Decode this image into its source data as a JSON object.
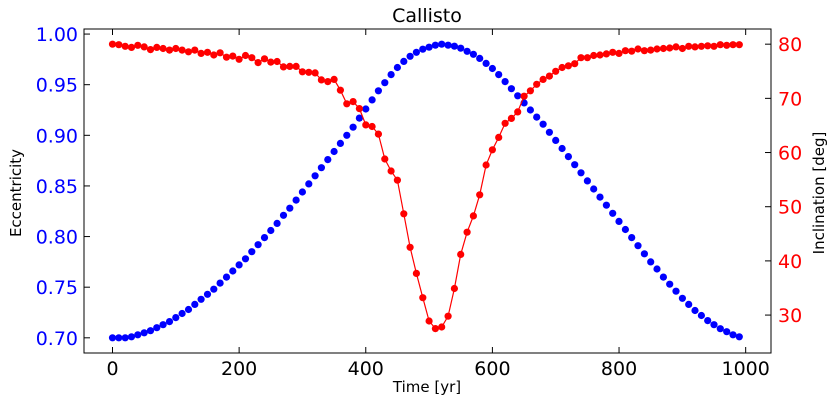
{
  "chart_data": {
    "type": "line",
    "title": "Callisto",
    "xlabel": "Time [yr]",
    "xlim": [
      -45,
      1040
    ],
    "x_ticks": [
      0,
      200,
      400,
      600,
      800,
      1000
    ],
    "y_left": {
      "label": "Eccentricity",
      "lim": [
        0.685,
        1.005
      ],
      "ticks": [
        0.7,
        0.75,
        0.8,
        0.85,
        0.9,
        0.95,
        1.0
      ],
      "color": "#0000ff"
    },
    "y_right": {
      "label": "Inclination [deg]",
      "lim": [
        23.0,
        82.8
      ],
      "ticks": [
        30,
        40,
        50,
        60,
        70,
        80
      ],
      "color": "#ff0000"
    },
    "x_step": 10,
    "grid": false,
    "legend": "none",
    "series": [
      {
        "axis": "left",
        "color": "#0000ff",
        "line": false,
        "marker": "circle",
        "x": [
          0,
          10,
          20,
          30,
          40,
          50,
          60,
          70,
          80,
          90,
          100,
          110,
          120,
          130,
          140,
          150,
          160,
          170,
          180,
          190,
          200,
          210,
          220,
          230,
          240,
          250,
          260,
          270,
          280,
          290,
          300,
          310,
          320,
          330,
          340,
          350,
          360,
          370,
          380,
          390,
          400,
          410,
          420,
          430,
          440,
          450,
          460,
          470,
          480,
          490,
          500,
          510,
          520,
          530,
          540,
          550,
          560,
          570,
          580,
          590,
          600,
          610,
          620,
          630,
          640,
          650,
          660,
          670,
          680,
          690,
          700,
          710,
          720,
          730,
          740,
          750,
          760,
          770,
          780,
          790,
          800,
          810,
          820,
          830,
          840,
          850,
          860,
          870,
          880,
          890,
          900,
          910,
          920,
          930,
          940,
          950,
          960,
          970,
          980,
          990
        ],
        "y": [
          0.7,
          0.7,
          0.7,
          0.701,
          0.703,
          0.705,
          0.707,
          0.71,
          0.713,
          0.716,
          0.72,
          0.724,
          0.728,
          0.733,
          0.738,
          0.743,
          0.748,
          0.754,
          0.76,
          0.766,
          0.772,
          0.778,
          0.785,
          0.792,
          0.799,
          0.806,
          0.813,
          0.821,
          0.828,
          0.836,
          0.844,
          0.852,
          0.86,
          0.868,
          0.876,
          0.884,
          0.892,
          0.9,
          0.908,
          0.917,
          0.926,
          0.935,
          0.944,
          0.952,
          0.96,
          0.967,
          0.973,
          0.978,
          0.982,
          0.985,
          0.987,
          0.989,
          0.99,
          0.989,
          0.988,
          0.986,
          0.983,
          0.98,
          0.976,
          0.971,
          0.966,
          0.96,
          0.953,
          0.946,
          0.939,
          0.932,
          0.925,
          0.918,
          0.911,
          0.903,
          0.895,
          0.887,
          0.879,
          0.871,
          0.863,
          0.855,
          0.847,
          0.839,
          0.831,
          0.823,
          0.815,
          0.807,
          0.799,
          0.791,
          0.783,
          0.775,
          0.768,
          0.76,
          0.753,
          0.746,
          0.739,
          0.733,
          0.727,
          0.722,
          0.717,
          0.713,
          0.709,
          0.706,
          0.703,
          0.701
        ]
      },
      {
        "axis": "right",
        "color": "#ff0000",
        "line": true,
        "marker": "circle",
        "x": [
          0,
          10,
          20,
          30,
          40,
          50,
          60,
          70,
          80,
          90,
          100,
          110,
          120,
          130,
          140,
          150,
          160,
          170,
          180,
          190,
          200,
          210,
          220,
          230,
          240,
          250,
          260,
          270,
          280,
          290,
          300,
          310,
          320,
          330,
          340,
          350,
          360,
          370,
          380,
          390,
          400,
          410,
          420,
          430,
          440,
          450,
          460,
          470,
          480,
          490,
          500,
          510,
          520,
          530,
          540,
          550,
          560,
          570,
          580,
          590,
          600,
          610,
          620,
          630,
          640,
          650,
          660,
          670,
          680,
          690,
          700,
          710,
          720,
          730,
          740,
          750,
          760,
          770,
          780,
          790,
          800,
          810,
          820,
          830,
          840,
          850,
          860,
          870,
          880,
          890,
          900,
          910,
          920,
          930,
          940,
          950,
          960,
          970,
          980,
          990
        ],
        "y": [
          80.0,
          79.9,
          79.6,
          79.4,
          79.8,
          79.5,
          79.0,
          79.4,
          79.2,
          78.9,
          79.2,
          78.9,
          78.6,
          78.9,
          78.3,
          78.5,
          78.0,
          78.4,
          77.6,
          77.8,
          77.2,
          77.9,
          77.5,
          76.6,
          77.3,
          76.7,
          76.8,
          75.8,
          75.9,
          75.9,
          74.9,
          74.8,
          74.7,
          73.4,
          73.1,
          73.5,
          71.5,
          69.0,
          69.4,
          68.1,
          65.1,
          64.8,
          63.4,
          58.8,
          56.6,
          54.9,
          48.7,
          42.5,
          37.7,
          33.2,
          28.9,
          27.5,
          27.8,
          29.8,
          34.9,
          41.2,
          45.3,
          48.3,
          52.2,
          57.7,
          60.5,
          62.8,
          65.4,
          66.3,
          67.5,
          70.4,
          71.4,
          72.6,
          73.5,
          74.1,
          75.0,
          75.7,
          76.0,
          76.4,
          77.5,
          77.5,
          77.9,
          78.0,
          78.2,
          78.5,
          78.3,
          78.8,
          78.7,
          79.1,
          78.8,
          78.9,
          79.1,
          79.2,
          79.3,
          79.5,
          79.2,
          79.6,
          79.5,
          79.6,
          79.7,
          79.6,
          79.9,
          79.8,
          79.9,
          79.9
        ]
      }
    ]
  }
}
